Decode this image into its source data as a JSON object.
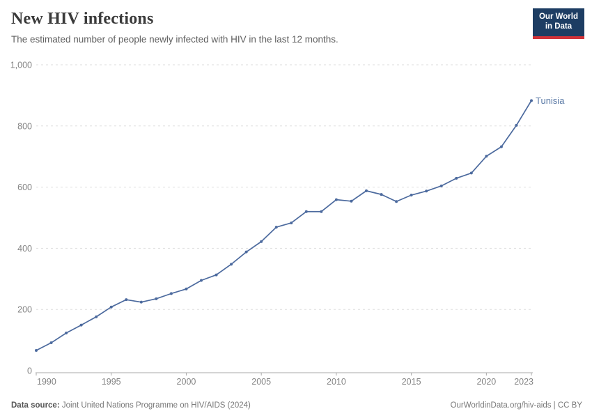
{
  "header": {
    "title": "New HIV infections",
    "subtitle": "The estimated number of people newly infected with HIV in the last 12 months."
  },
  "logo": {
    "line1": "Our World",
    "line2": "in Data"
  },
  "chart_data": {
    "type": "line",
    "title": "New HIV infections",
    "xlabel": "",
    "ylabel": "",
    "x": [
      1990,
      1991,
      1992,
      1993,
      1994,
      1995,
      1996,
      1997,
      1998,
      1999,
      2000,
      2001,
      2002,
      2003,
      2004,
      2005,
      2006,
      2007,
      2008,
      2009,
      2010,
      2011,
      2012,
      2013,
      2014,
      2015,
      2016,
      2017,
      2018,
      2019,
      2020,
      2021,
      2022,
      2023
    ],
    "series": [
      {
        "name": "Tunisia",
        "values": [
          66,
          91,
          123,
          149,
          176,
          208,
          232,
          224,
          235,
          252,
          267,
          295,
          313,
          348,
          388,
          422,
          469,
          483,
          520,
          520,
          559,
          554,
          588,
          576,
          553,
          574,
          587,
          604,
          629,
          646,
          701,
          732,
          802,
          883
        ]
      }
    ],
    "xlim": [
      1990,
      2023
    ],
    "ylim": [
      0,
      1000
    ],
    "yticks": [
      0,
      200,
      400,
      600,
      800,
      1000
    ],
    "xticks": [
      1990,
      1995,
      2000,
      2005,
      2010,
      2015,
      2020,
      2023
    ],
    "grid": "dashed-horizontal",
    "legend_position": "end-of-line",
    "entity_label": "Tunisia",
    "colors": {
      "line": "#4c6a9e",
      "entity_label": "#5b7aa6",
      "gridline": "#dddddd",
      "axis_line": "#a8a8a8",
      "tick_text": "#848484"
    }
  },
  "footer": {
    "datasource_label": "Data source:",
    "datasource": "Joint United Nations Programme on HIV/AIDS (2024)",
    "credit": "OurWorldinData.org/hiv-aids | CC BY"
  }
}
